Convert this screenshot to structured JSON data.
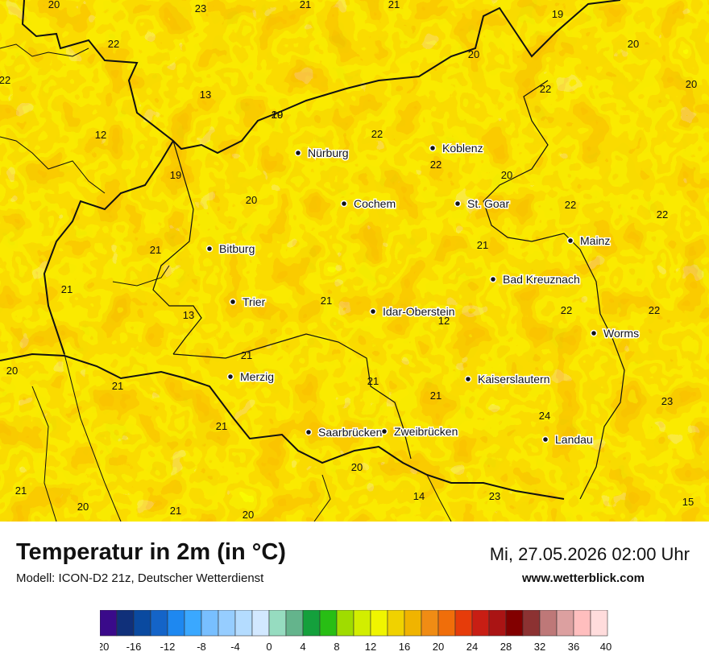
{
  "header": {
    "title": "Temperatur in 2m (in °C)",
    "subtitle": "Modell: ICON-D2 21z, Deutscher Wetterdienst",
    "datetime": "Mi, 27.05.2026 02:00 Uhr",
    "website": "www.wetterblick.com"
  },
  "cities": [
    {
      "name": "Nürburg"
    },
    {
      "name": "Koblenz"
    },
    {
      "name": "Cochem"
    },
    {
      "name": "St. Goar"
    },
    {
      "name": "Bitburg"
    },
    {
      "name": "Mainz"
    },
    {
      "name": "Bad Kreuznach"
    },
    {
      "name": "Trier"
    },
    {
      "name": "Idar-Oberstein"
    },
    {
      "name": "Worms"
    },
    {
      "name": "Merzig"
    },
    {
      "name": "Kaiserslautern"
    },
    {
      "name": "Saarbrücken"
    },
    {
      "name": "Zweibrücken"
    },
    {
      "name": "Landau"
    }
  ],
  "values": [
    "20",
    "23",
    "21",
    "21",
    "19",
    "22",
    "20",
    "20",
    "22",
    "13",
    "20",
    "12",
    "22",
    "22",
    "20",
    "19",
    "20",
    "22",
    "22",
    "20",
    "22",
    "21",
    "21",
    "12",
    "22",
    "22",
    "13",
    "21",
    "20",
    "21",
    "21",
    "21",
    "21",
    "23",
    "24",
    "21",
    "21",
    "14",
    "23",
    "21",
    "20",
    "20",
    "15",
    "19",
    "21",
    "20"
  ],
  "legend": {
    "ticks": [
      "-20",
      "-16",
      "-12",
      "-8",
      "-4",
      "0",
      "4",
      "8",
      "12",
      "16",
      "20",
      "24",
      "28",
      "32",
      "36",
      "40"
    ],
    "colors": [
      "#3a0a8a",
      "#10307a",
      "#0a4aa0",
      "#1464c8",
      "#1e88f0",
      "#3aa8ff",
      "#78bfff",
      "#96cdff",
      "#b4dcff",
      "#d2e8ff",
      "#96dcc0",
      "#64b48c",
      "#14a03c",
      "#28be14",
      "#a0dc00",
      "#d2ee00",
      "#f0f500",
      "#f0d200",
      "#f0b400",
      "#f08c14",
      "#f06e0a",
      "#e63c0a",
      "#c81e14",
      "#aa1414",
      "#820000",
      "#8c3232",
      "#be7878",
      "#dca0a0",
      "#ffbebe",
      "#ffdcdc"
    ]
  }
}
